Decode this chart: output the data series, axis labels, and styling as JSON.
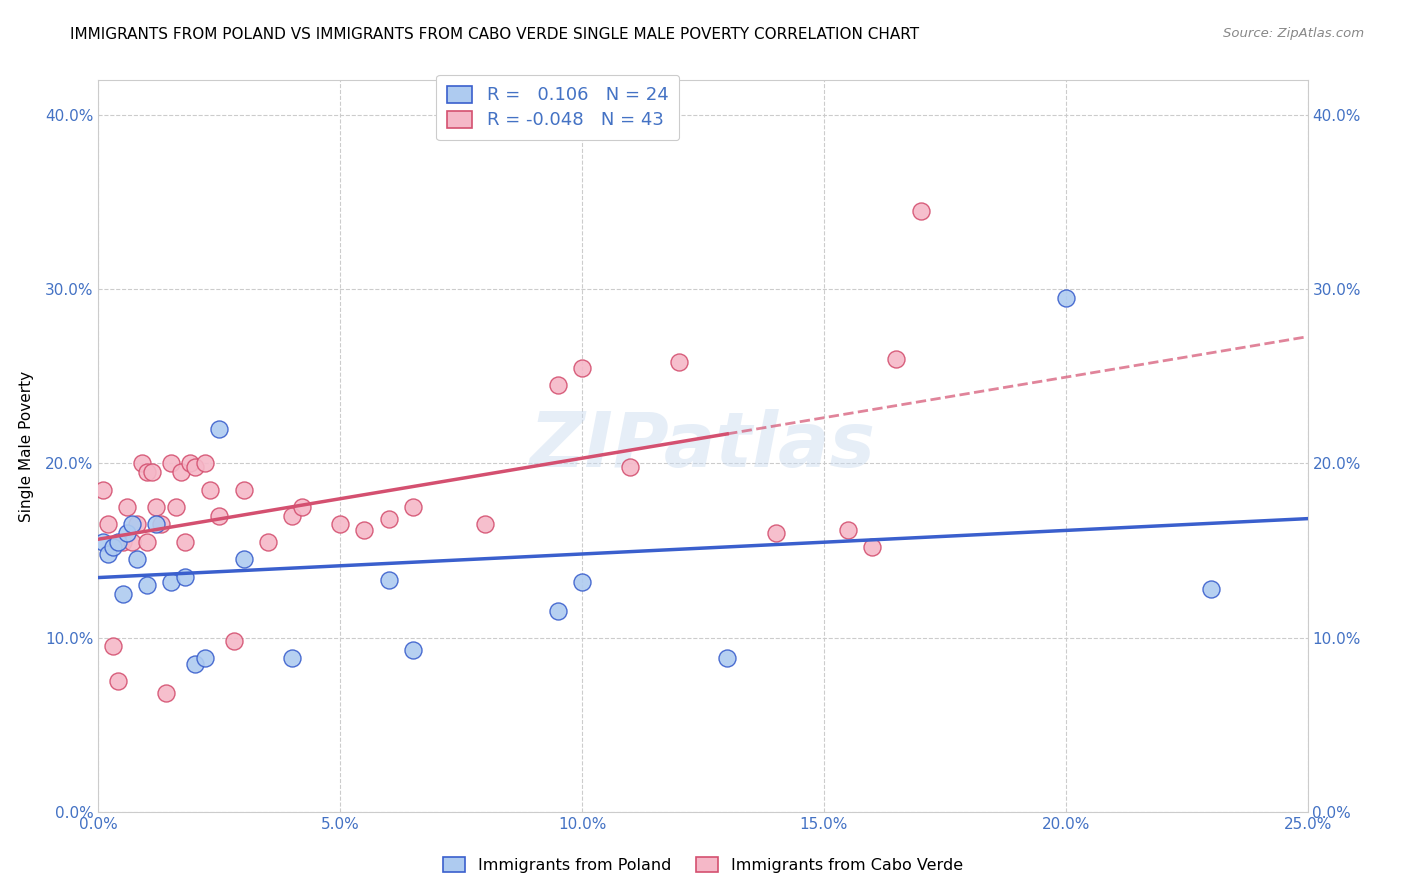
{
  "title": "IMMIGRANTS FROM POLAND VS IMMIGRANTS FROM CABO VERDE SINGLE MALE POVERTY CORRELATION CHART",
  "source": "Source: ZipAtlas.com",
  "ylabel": "Single Male Poverty",
  "legend_label1": "Immigrants from Poland",
  "legend_label2": "Immigrants from Cabo Verde",
  "R1": 0.106,
  "N1": 24,
  "R2": -0.048,
  "N2": 43,
  "xlim": [
    0.0,
    0.25
  ],
  "ylim": [
    0.0,
    0.42
  ],
  "xticks": [
    0.0,
    0.05,
    0.1,
    0.15,
    0.2,
    0.25
  ],
  "yticks": [
    0.0,
    0.1,
    0.2,
    0.3,
    0.4
  ],
  "color_poland": "#aecbf0",
  "color_caboverde": "#f5b8c8",
  "trendline_poland": "#3a5fcd",
  "trendline_caboverde": "#d45070",
  "poland_x": [
    0.001,
    0.002,
    0.003,
    0.004,
    0.005,
    0.006,
    0.007,
    0.008,
    0.01,
    0.012,
    0.015,
    0.018,
    0.02,
    0.022,
    0.025,
    0.03,
    0.04,
    0.06,
    0.065,
    0.095,
    0.1,
    0.13,
    0.2,
    0.23
  ],
  "poland_y": [
    0.155,
    0.148,
    0.152,
    0.155,
    0.125,
    0.16,
    0.165,
    0.145,
    0.13,
    0.165,
    0.132,
    0.135,
    0.085,
    0.088,
    0.22,
    0.145,
    0.088,
    0.133,
    0.093,
    0.115,
    0.132,
    0.088,
    0.295,
    0.128
  ],
  "caboverde_x": [
    0.001,
    0.002,
    0.003,
    0.004,
    0.005,
    0.006,
    0.007,
    0.008,
    0.009,
    0.01,
    0.01,
    0.011,
    0.012,
    0.013,
    0.014,
    0.015,
    0.016,
    0.017,
    0.018,
    0.019,
    0.02,
    0.022,
    0.023,
    0.025,
    0.028,
    0.03,
    0.035,
    0.04,
    0.042,
    0.05,
    0.055,
    0.06,
    0.065,
    0.08,
    0.095,
    0.1,
    0.11,
    0.12,
    0.14,
    0.155,
    0.16,
    0.165,
    0.17
  ],
  "caboverde_y": [
    0.185,
    0.165,
    0.095,
    0.075,
    0.155,
    0.175,
    0.155,
    0.165,
    0.2,
    0.195,
    0.155,
    0.195,
    0.175,
    0.165,
    0.068,
    0.2,
    0.175,
    0.195,
    0.155,
    0.2,
    0.198,
    0.2,
    0.185,
    0.17,
    0.098,
    0.185,
    0.155,
    0.17,
    0.175,
    0.165,
    0.162,
    0.168,
    0.175,
    0.165,
    0.245,
    0.255,
    0.198,
    0.258,
    0.16,
    0.162,
    0.152,
    0.26,
    0.345
  ],
  "watermark": "ZIPatlas",
  "bg_color": "#ffffff",
  "grid_color": "#cccccc",
  "tick_color": "#4472c4",
  "title_color": "#000000",
  "source_color": "#888888"
}
